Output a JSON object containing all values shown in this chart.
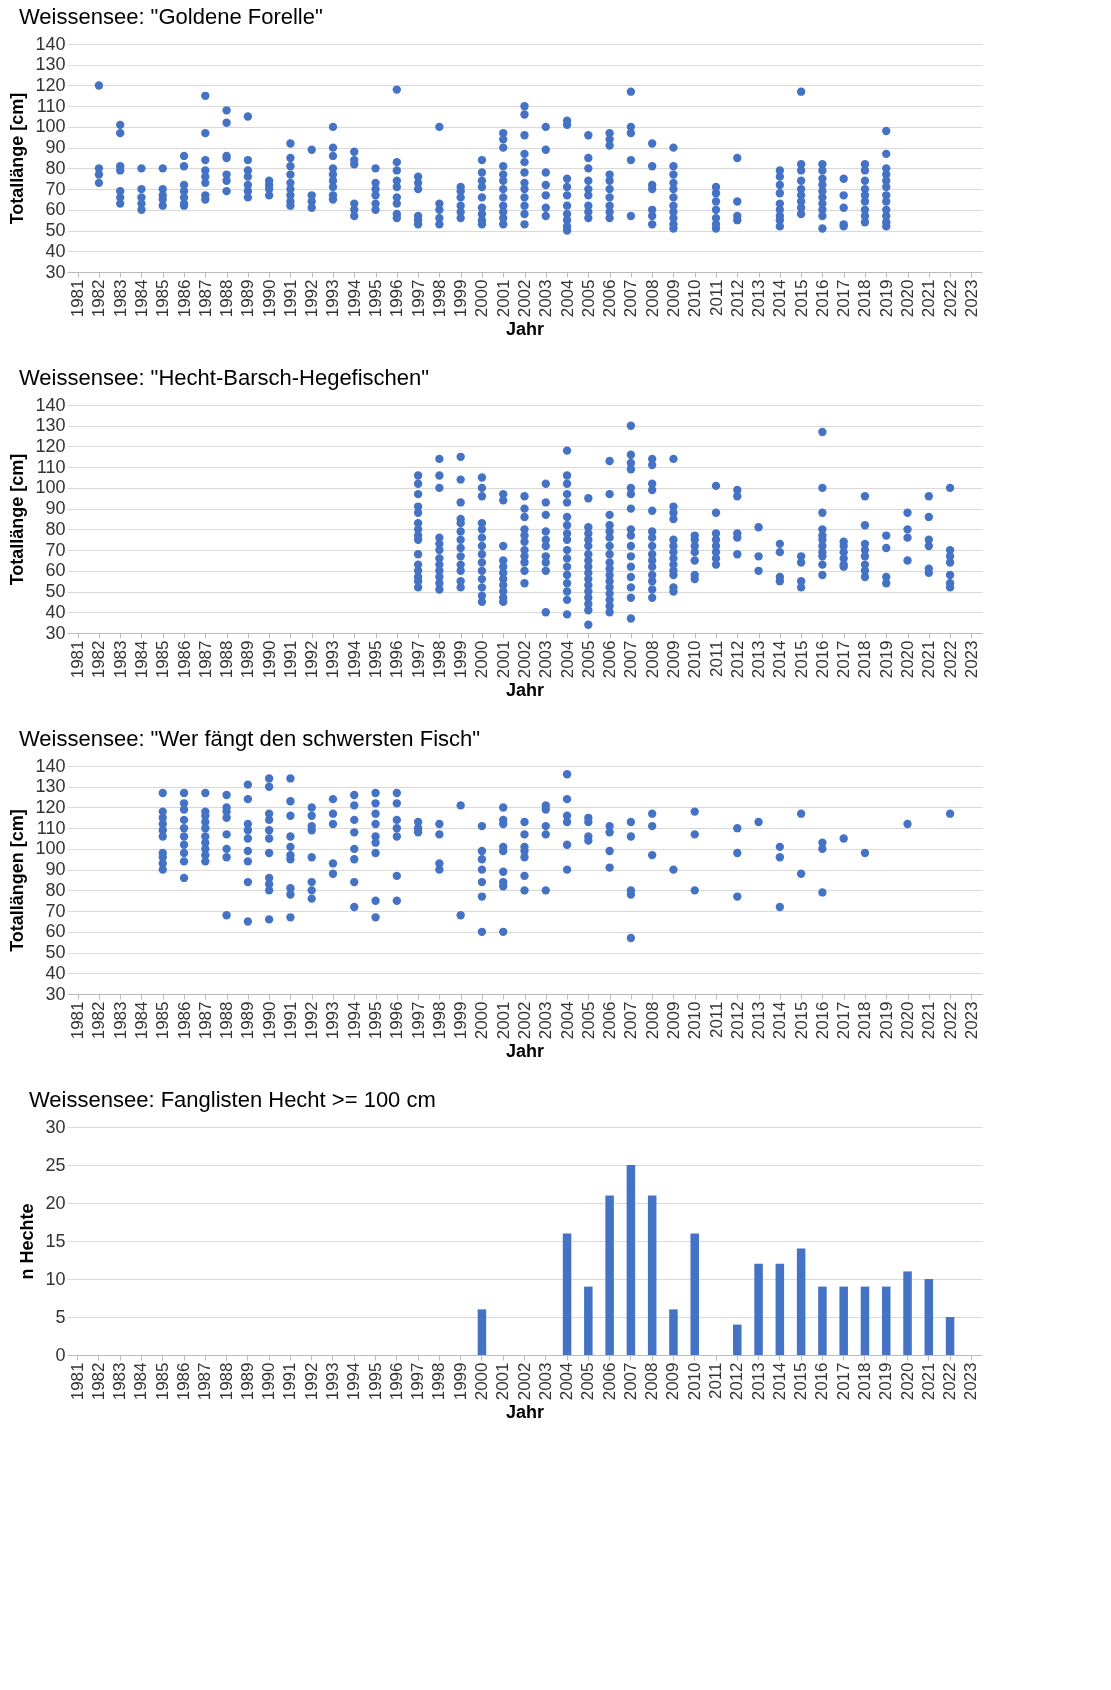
{
  "chart_data": [
    {
      "type": "scatter",
      "title": "Weissensee: \"Goldene Forelle\"",
      "xlabel": "Jahr",
      "ylabel": "Totallänge [cm]",
      "color": "#4472c4",
      "marker": "circle",
      "grid": "y",
      "xlim": [
        1980.5,
        2023.5
      ],
      "xticks": [
        1981,
        1982,
        1983,
        1984,
        1985,
        1986,
        1987,
        1988,
        1989,
        1990,
        1991,
        1992,
        1993,
        1994,
        1995,
        1996,
        1997,
        1998,
        1999,
        2000,
        2001,
        2002,
        2003,
        2004,
        2005,
        2006,
        2007,
        2008,
        2009,
        2010,
        2011,
        2012,
        2013,
        2014,
        2015,
        2016,
        2017,
        2018,
        2019,
        2020,
        2021,
        2022,
        2023
      ],
      "ylim": [
        30,
        140
      ],
      "yticks": [
        30,
        40,
        50,
        60,
        70,
        80,
        90,
        100,
        110,
        120,
        130,
        140
      ],
      "x": [
        1982,
        1982,
        1982,
        1982,
        1983,
        1983,
        1983,
        1983,
        1983,
        1983,
        1983,
        1984,
        1984,
        1984,
        1984,
        1984,
        1985,
        1985,
        1985,
        1985,
        1985,
        1986,
        1986,
        1986,
        1986,
        1986,
        1986,
        1986,
        1987,
        1987,
        1987,
        1987,
        1987,
        1987,
        1987,
        1987,
        1988,
        1988,
        1988,
        1988,
        1988,
        1988,
        1988,
        1989,
        1989,
        1989,
        1989,
        1989,
        1989,
        1989,
        1990,
        1990,
        1990,
        1990,
        1991,
        1991,
        1991,
        1991,
        1991,
        1991,
        1991,
        1991,
        1991,
        1992,
        1992,
        1992,
        1992,
        1993,
        1993,
        1993,
        1993,
        1993,
        1993,
        1993,
        1993,
        1993,
        1994,
        1994,
        1994,
        1994,
        1994,
        1994,
        1995,
        1995,
        1995,
        1995,
        1995,
        1995,
        1996,
        1996,
        1996,
        1996,
        1996,
        1996,
        1996,
        1996,
        1996,
        1997,
        1997,
        1997,
        1997,
        1997,
        1997,
        1998,
        1998,
        1998,
        1998,
        1998,
        1999,
        1999,
        1999,
        1999,
        1999,
        1999,
        2000,
        2000,
        2000,
        2000,
        2000,
        2000,
        2000,
        2000,
        2000,
        2001,
        2001,
        2001,
        2001,
        2001,
        2001,
        2001,
        2001,
        2001,
        2001,
        2001,
        2001,
        2002,
        2002,
        2002,
        2002,
        2002,
        2002,
        2002,
        2002,
        2002,
        2002,
        2002,
        2002,
        2003,
        2003,
        2003,
        2003,
        2003,
        2003,
        2003,
        2004,
        2004,
        2004,
        2004,
        2004,
        2004,
        2004,
        2004,
        2004,
        2004,
        2005,
        2005,
        2005,
        2005,
        2005,
        2005,
        2005,
        2005,
        2005,
        2006,
        2006,
        2006,
        2006,
        2006,
        2006,
        2006,
        2006,
        2006,
        2006,
        2007,
        2007,
        2007,
        2007,
        2007,
        2008,
        2008,
        2008,
        2008,
        2008,
        2008,
        2008,
        2009,
        2009,
        2009,
        2009,
        2009,
        2009,
        2009,
        2009,
        2009,
        2009,
        2009,
        2011,
        2011,
        2011,
        2011,
        2011,
        2011,
        2011,
        2012,
        2012,
        2012,
        2012,
        2014,
        2014,
        2014,
        2014,
        2014,
        2014,
        2014,
        2014,
        2014,
        2015,
        2015,
        2015,
        2015,
        2015,
        2015,
        2015,
        2015,
        2015,
        2016,
        2016,
        2016,
        2016,
        2016,
        2016,
        2016,
        2016,
        2016,
        2016,
        2017,
        2017,
        2017,
        2017,
        2017,
        2018,
        2018,
        2018,
        2018,
        2018,
        2018,
        2018,
        2018,
        2018,
        2019,
        2019,
        2019,
        2019,
        2019,
        2019,
        2019,
        2019,
        2019,
        2019,
        2019,
        2019
      ],
      "values": [
        120,
        80,
        77,
        73,
        101,
        97,
        81,
        79,
        69,
        66,
        63,
        80,
        70,
        66,
        63,
        60,
        80,
        70,
        67,
        65,
        62,
        86,
        81,
        72,
        69,
        66,
        63,
        62,
        115,
        97,
        84,
        79,
        76,
        73,
        67,
        65,
        108,
        102,
        86,
        85,
        77,
        74,
        69,
        105,
        84,
        79,
        76,
        72,
        69,
        66,
        74,
        72,
        70,
        67,
        92,
        85,
        81,
        77,
        73,
        70,
        67,
        64,
        62,
        89,
        67,
        64,
        61,
        100,
        90,
        86,
        80,
        77,
        74,
        71,
        67,
        65,
        88,
        84,
        82,
        63,
        60,
        57,
        80,
        73,
        70,
        67,
        63,
        60,
        118,
        83,
        79,
        74,
        71,
        66,
        63,
        58,
        56,
        76,
        73,
        70,
        57,
        55,
        53,
        100,
        63,
        60,
        56,
        53,
        71,
        69,
        66,
        62,
        59,
        56,
        84,
        78,
        74,
        71,
        66,
        61,
        58,
        55,
        53,
        97,
        94,
        90,
        81,
        77,
        74,
        70,
        66,
        62,
        59,
        56,
        53,
        110,
        106,
        96,
        87,
        83,
        78,
        73,
        70,
        66,
        62,
        58,
        53,
        100,
        89,
        78,
        72,
        67,
        61,
        57,
        103,
        101,
        75,
        71,
        67,
        62,
        58,
        55,
        52,
        50,
        96,
        85,
        80,
        74,
        70,
        67,
        62,
        59,
        56,
        97,
        94,
        91,
        77,
        74,
        70,
        66,
        62,
        59,
        56,
        117,
        100,
        97,
        84,
        57,
        92,
        81,
        72,
        70,
        60,
        57,
        53,
        90,
        81,
        77,
        73,
        70,
        66,
        62,
        59,
        56,
        53,
        51,
        71,
        68,
        64,
        60,
        56,
        53,
        51,
        85,
        64,
        57,
        55,
        79,
        76,
        72,
        68,
        63,
        60,
        57,
        55,
        52,
        117,
        82,
        79,
        74,
        70,
        67,
        64,
        61,
        58,
        82,
        79,
        75,
        72,
        69,
        66,
        63,
        60,
        57,
        51,
        75,
        67,
        61,
        53,
        52,
        82,
        79,
        74,
        70,
        67,
        64,
        60,
        57,
        54,
        98,
        87,
        80,
        77,
        74,
        71,
        67,
        64,
        60,
        57,
        54,
        52
      ]
    },
    {
      "type": "scatter",
      "title": "Weissensee: \"Hecht-Barsch-Hegefischen\"",
      "xlabel": "Jahr",
      "ylabel": "Totallänge [cm]",
      "color": "#4472c4",
      "marker": "circle",
      "grid": "y",
      "xlim": [
        1980.5,
        2023.5
      ],
      "xticks": [
        1981,
        1982,
        1983,
        1984,
        1985,
        1986,
        1987,
        1988,
        1989,
        1990,
        1991,
        1992,
        1993,
        1994,
        1995,
        1996,
        1997,
        1998,
        1999,
        2000,
        2001,
        2002,
        2003,
        2004,
        2005,
        2006,
        2007,
        2008,
        2009,
        2010,
        2011,
        2012,
        2013,
        2014,
        2015,
        2016,
        2017,
        2018,
        2019,
        2020,
        2021,
        2022,
        2023
      ],
      "ylim": [
        30,
        140
      ],
      "yticks": [
        30,
        40,
        50,
        60,
        70,
        80,
        90,
        100,
        110,
        120,
        130,
        140
      ],
      "x": [
        1997,
        1997,
        1997,
        1997,
        1997,
        1997,
        1997,
        1997,
        1997,
        1997,
        1997,
        1997,
        1997,
        1997,
        1997,
        1998,
        1998,
        1998,
        1998,
        1998,
        1998,
        1998,
        1998,
        1998,
        1998,
        1998,
        1998,
        1999,
        1999,
        1999,
        1999,
        1999,
        1999,
        1999,
        1999,
        1999,
        1999,
        1999,
        1999,
        1999,
        2000,
        2000,
        2000,
        2000,
        2000,
        2000,
        2000,
        2000,
        2000,
        2000,
        2000,
        2000,
        2000,
        2000,
        2001,
        2001,
        2001,
        2001,
        2001,
        2001,
        2001,
        2001,
        2001,
        2001,
        2001,
        2002,
        2002,
        2002,
        2002,
        2002,
        2002,
        2002,
        2002,
        2002,
        2002,
        2002,
        2003,
        2003,
        2003,
        2003,
        2003,
        2003,
        2003,
        2003,
        2003,
        2003,
        2004,
        2004,
        2004,
        2004,
        2004,
        2004,
        2004,
        2004,
        2004,
        2004,
        2004,
        2004,
        2004,
        2004,
        2004,
        2004,
        2004,
        2005,
        2005,
        2005,
        2005,
        2005,
        2005,
        2005,
        2005,
        2005,
        2005,
        2005,
        2005,
        2005,
        2005,
        2005,
        2005,
        2006,
        2006,
        2006,
        2006,
        2006,
        2006,
        2006,
        2006,
        2006,
        2006,
        2006,
        2006,
        2006,
        2006,
        2006,
        2006,
        2006,
        2007,
        2007,
        2007,
        2007,
        2007,
        2007,
        2007,
        2007,
        2007,
        2007,
        2007,
        2007,
        2007,
        2007,
        2007,
        2007,
        2008,
        2008,
        2008,
        2008,
        2008,
        2008,
        2008,
        2008,
        2008,
        2008,
        2008,
        2008,
        2008,
        2008,
        2008,
        2009,
        2009,
        2009,
        2009,
        2009,
        2009,
        2009,
        2009,
        2009,
        2009,
        2009,
        2009,
        2009,
        2010,
        2010,
        2010,
        2010,
        2010,
        2010,
        2010,
        2011,
        2011,
        2011,
        2011,
        2011,
        2011,
        2011,
        2011,
        2012,
        2012,
        2012,
        2012,
        2012,
        2013,
        2013,
        2013,
        2014,
        2014,
        2014,
        2014,
        2015,
        2015,
        2015,
        2015,
        2016,
        2016,
        2016,
        2016,
        2016,
        2016,
        2016,
        2016,
        2016,
        2016,
        2016,
        2017,
        2017,
        2017,
        2017,
        2017,
        2017,
        2018,
        2018,
        2018,
        2018,
        2018,
        2018,
        2018,
        2018,
        2019,
        2019,
        2019,
        2019,
        2020,
        2020,
        2020,
        2020,
        2021,
        2021,
        2021,
        2021,
        2021,
        2021,
        2022,
        2022,
        2022,
        2022,
        2022,
        2022,
        2022
      ],
      "values": [
        106,
        102,
        97,
        91,
        88,
        83,
        80,
        77,
        75,
        68,
        63,
        60,
        57,
        55,
        52,
        114,
        106,
        100,
        76,
        73,
        70,
        66,
        63,
        60,
        57,
        54,
        51,
        115,
        104,
        93,
        85,
        83,
        79,
        75,
        71,
        67,
        63,
        60,
        55,
        52,
        105,
        100,
        96,
        83,
        80,
        76,
        72,
        68,
        64,
        60,
        56,
        52,
        48,
        45,
        97,
        94,
        72,
        65,
        62,
        59,
        56,
        53,
        50,
        47,
        45,
        96,
        90,
        86,
        80,
        77,
        74,
        70,
        67,
        64,
        60,
        54,
        102,
        93,
        87,
        79,
        75,
        72,
        67,
        64,
        60,
        40,
        118,
        106,
        102,
        97,
        93,
        86,
        82,
        78,
        75,
        70,
        66,
        62,
        58,
        54,
        50,
        46,
        39,
        95,
        81,
        78,
        75,
        72,
        68,
        65,
        62,
        59,
        56,
        53,
        50,
        47,
        44,
        41,
        34,
        113,
        97,
        87,
        82,
        79,
        76,
        72,
        68,
        64,
        61,
        58,
        55,
        52,
        49,
        46,
        43,
        40,
        130,
        116,
        112,
        109,
        100,
        97,
        90,
        80,
        77,
        72,
        67,
        62,
        57,
        52,
        47,
        37,
        114,
        111,
        102,
        99,
        89,
        79,
        76,
        72,
        68,
        65,
        62,
        58,
        55,
        51,
        47,
        114,
        91,
        88,
        85,
        75,
        72,
        69,
        66,
        63,
        60,
        58,
        52,
        50,
        77,
        75,
        72,
        69,
        65,
        58,
        56,
        101,
        88,
        78,
        75,
        72,
        69,
        66,
        63,
        99,
        96,
        78,
        76,
        68,
        81,
        67,
        60,
        73,
        69,
        57,
        55,
        67,
        64,
        55,
        52,
        127,
        100,
        88,
        80,
        77,
        75,
        72,
        69,
        67,
        63,
        58,
        74,
        72,
        69,
        66,
        63,
        62,
        96,
        82,
        73,
        70,
        67,
        63,
        60,
        57,
        77,
        71,
        57,
        54,
        88,
        80,
        76,
        65,
        96,
        86,
        75,
        72,
        61,
        59,
        100,
        70,
        67,
        64,
        58,
        54,
        52
      ]
    },
    {
      "type": "scatter",
      "title": "Weissensee: \"Wer fängt den schwersten Fisch\"",
      "xlabel": "Jahr",
      "ylabel": "Totallängen [cm]",
      "color": "#4472c4",
      "marker": "circle",
      "grid": "y",
      "xlim": [
        1980.5,
        2023.5
      ],
      "xticks": [
        1981,
        1982,
        1983,
        1984,
        1985,
        1986,
        1987,
        1988,
        1989,
        1990,
        1991,
        1992,
        1993,
        1994,
        1995,
        1996,
        1997,
        1998,
        1999,
        2000,
        2001,
        2002,
        2003,
        2004,
        2005,
        2006,
        2007,
        2008,
        2009,
        2010,
        2011,
        2012,
        2013,
        2014,
        2015,
        2016,
        2017,
        2018,
        2019,
        2020,
        2021,
        2022,
        2023
      ],
      "ylim": [
        30,
        140
      ],
      "yticks": [
        30,
        40,
        50,
        60,
        70,
        80,
        90,
        100,
        110,
        120,
        130,
        140
      ],
      "x": [
        1985,
        1985,
        1985,
        1985,
        1985,
        1985,
        1985,
        1985,
        1985,
        1985,
        1986,
        1986,
        1986,
        1986,
        1986,
        1986,
        1986,
        1986,
        1986,
        1986,
        1987,
        1987,
        1987,
        1987,
        1987,
        1987,
        1987,
        1987,
        1987,
        1987,
        1988,
        1988,
        1988,
        1988,
        1988,
        1988,
        1988,
        1988,
        1989,
        1989,
        1989,
        1989,
        1989,
        1989,
        1989,
        1989,
        1989,
        1990,
        1990,
        1990,
        1990,
        1990,
        1990,
        1990,
        1990,
        1990,
        1990,
        1990,
        1991,
        1991,
        1991,
        1991,
        1991,
        1991,
        1991,
        1991,
        1991,
        1991,
        1992,
        1992,
        1992,
        1992,
        1992,
        1992,
        1992,
        1992,
        1993,
        1993,
        1993,
        1993,
        1993,
        1994,
        1994,
        1994,
        1994,
        1994,
        1994,
        1994,
        1994,
        1995,
        1995,
        1995,
        1995,
        1995,
        1995,
        1995,
        1995,
        1995,
        1996,
        1996,
        1996,
        1996,
        1996,
        1996,
        1996,
        1997,
        1997,
        1997,
        1998,
        1998,
        1998,
        1998,
        1999,
        1999,
        2000,
        2000,
        2000,
        2000,
        2000,
        2000,
        2000,
        2001,
        2001,
        2001,
        2001,
        2001,
        2001,
        2001,
        2001,
        2001,
        2002,
        2002,
        2002,
        2002,
        2002,
        2002,
        2002,
        2003,
        2003,
        2003,
        2003,
        2003,
        2004,
        2004,
        2004,
        2004,
        2004,
        2004,
        2005,
        2005,
        2005,
        2005,
        2006,
        2006,
        2006,
        2006,
        2007,
        2007,
        2007,
        2007,
        2007,
        2008,
        2008,
        2008,
        2009,
        2010,
        2010,
        2010,
        2012,
        2012,
        2012,
        2013,
        2014,
        2014,
        2014,
        2015,
        2015,
        2016,
        2016,
        2016,
        2017,
        2018,
        2020,
        2022
      ],
      "values": [
        127,
        118,
        115,
        112,
        109,
        106,
        98,
        96,
        93,
        90,
        127,
        122,
        119,
        114,
        110,
        106,
        102,
        98,
        94,
        86,
        127,
        118,
        116,
        113,
        110,
        106,
        103,
        100,
        97,
        94,
        126,
        120,
        118,
        115,
        107,
        100,
        96,
        68,
        131,
        124,
        112,
        109,
        105,
        99,
        94,
        84,
        65,
        134,
        130,
        117,
        114,
        109,
        105,
        98,
        86,
        83,
        80,
        66,
        134,
        123,
        116,
        106,
        101,
        97,
        95,
        81,
        78,
        67,
        120,
        116,
        111,
        109,
        96,
        84,
        80,
        76,
        124,
        117,
        112,
        93,
        88,
        126,
        121,
        114,
        108,
        100,
        95,
        84,
        72,
        127,
        122,
        117,
        112,
        106,
        103,
        98,
        75,
        67,
        127,
        122,
        114,
        110,
        106,
        87,
        75,
        113,
        110,
        108,
        112,
        107,
        93,
        90,
        121,
        68,
        111,
        99,
        95,
        90,
        84,
        77,
        60,
        120,
        114,
        112,
        101,
        99,
        89,
        84,
        82,
        60,
        113,
        107,
        101,
        99,
        96,
        87,
        80,
        121,
        119,
        111,
        107,
        80,
        136,
        124,
        116,
        113,
        102,
        90,
        115,
        113,
        106,
        104,
        111,
        108,
        99,
        91,
        113,
        106,
        80,
        78,
        57,
        117,
        111,
        97,
        90,
        118,
        107,
        80,
        110,
        98,
        77,
        113,
        101,
        96,
        72,
        117,
        88,
        103,
        100,
        79,
        105,
        98,
        112,
        117
      ]
    },
    {
      "type": "bar",
      "title": "Weissensee: Fanglisten Hecht >= 100 cm",
      "xlabel": "Jahr",
      "ylabel": "n Hechte",
      "color": "#4472c4",
      "grid": "y",
      "categories": [
        "1981",
        "1982",
        "1983",
        "1984",
        "1985",
        "1986",
        "1987",
        "1988",
        "1989",
        "1990",
        "1991",
        "1992",
        "1993",
        "1994",
        "1995",
        "1996",
        "1997",
        "1998",
        "1999",
        "2000",
        "2001",
        "2002",
        "2003",
        "2004",
        "2005",
        "2006",
        "2007",
        "2008",
        "2009",
        "2010",
        "2011",
        "2012",
        "2013",
        "2014",
        "2015",
        "2016",
        "2017",
        "2018",
        "2019",
        "2020",
        "2021",
        "2022",
        "2023"
      ],
      "values": [
        null,
        null,
        null,
        null,
        null,
        null,
        null,
        null,
        null,
        null,
        null,
        null,
        null,
        null,
        null,
        null,
        null,
        null,
        null,
        6,
        null,
        null,
        null,
        16,
        9,
        21,
        25,
        21,
        6,
        16,
        null,
        4,
        12,
        12,
        14,
        9,
        9,
        9,
        9,
        11,
        10,
        5,
        null
      ],
      "ylim": [
        0,
        30
      ],
      "yticks": [
        0,
        5,
        10,
        15,
        20,
        25,
        30
      ]
    }
  ]
}
